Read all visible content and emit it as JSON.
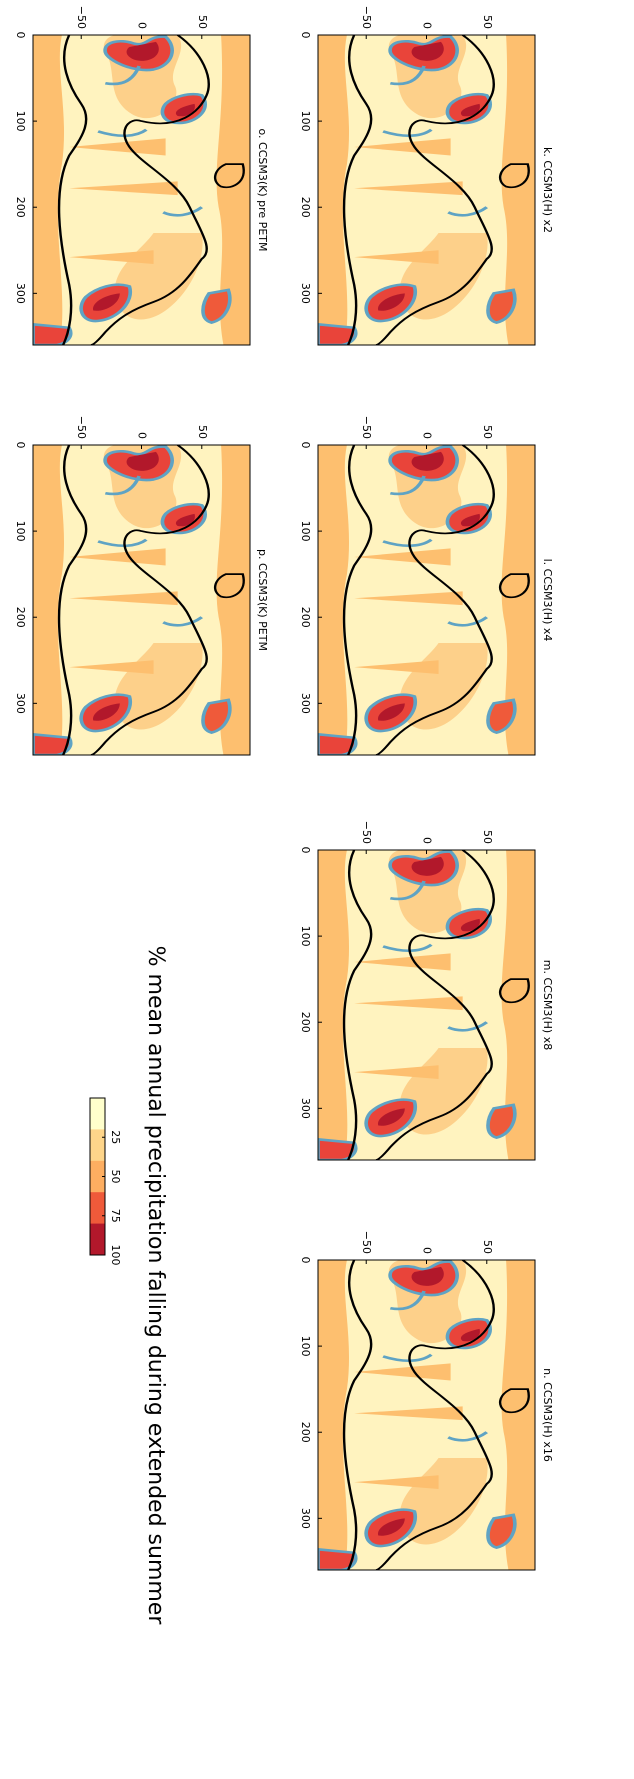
{
  "panels": [
    {
      "title": "k. CCSM3(H) x2",
      "xticks": [
        0,
        100,
        200,
        300
      ],
      "yticks": [
        {
          "value": -50,
          "label": "−50"
        },
        0,
        50
      ]
    },
    {
      "title": "l. CCSM3(H) x4",
      "xticks": [
        0,
        100,
        200,
        300
      ],
      "yticks": [
        {
          "value": -50,
          "label": "−50"
        },
        0,
        50
      ]
    },
    {
      "title": "m. CCSM3(H) x8",
      "xticks": [
        0,
        100,
        200,
        300
      ],
      "yticks": [
        {
          "value": -50,
          "label": "−50"
        },
        0,
        50
      ]
    },
    {
      "title": "n. CCSM3(H) x16",
      "xticks": [
        0,
        100,
        200,
        300
      ],
      "yticks": [
        {
          "value": -50,
          "label": "−50"
        },
        0,
        50
      ]
    },
    {
      "title": "o. CCSM3(K) pre PETM",
      "xticks": [
        0,
        100,
        200,
        300
      ],
      "yticks": [
        {
          "value": -50,
          "label": "−50"
        },
        0,
        50
      ]
    },
    {
      "title": "p. CCSM3(K) PETM",
      "xticks": [
        0,
        100,
        200,
        300
      ],
      "yticks": [
        {
          "value": -50,
          "label": "−50"
        },
        0,
        50
      ]
    }
  ],
  "xlim": [
    0,
    360
  ],
  "ylim": [
    -90,
    90
  ],
  "colorbar": {
    "label": "% mean annual precipitation falling during extended summer",
    "ticks": [
      25,
      50,
      75,
      100
    ],
    "lim": [
      0,
      100
    ],
    "colors": [
      "#ffffcc",
      "#fed58a",
      "#fdae61",
      "#ef5a3a",
      "#b2182b"
    ]
  }
}
